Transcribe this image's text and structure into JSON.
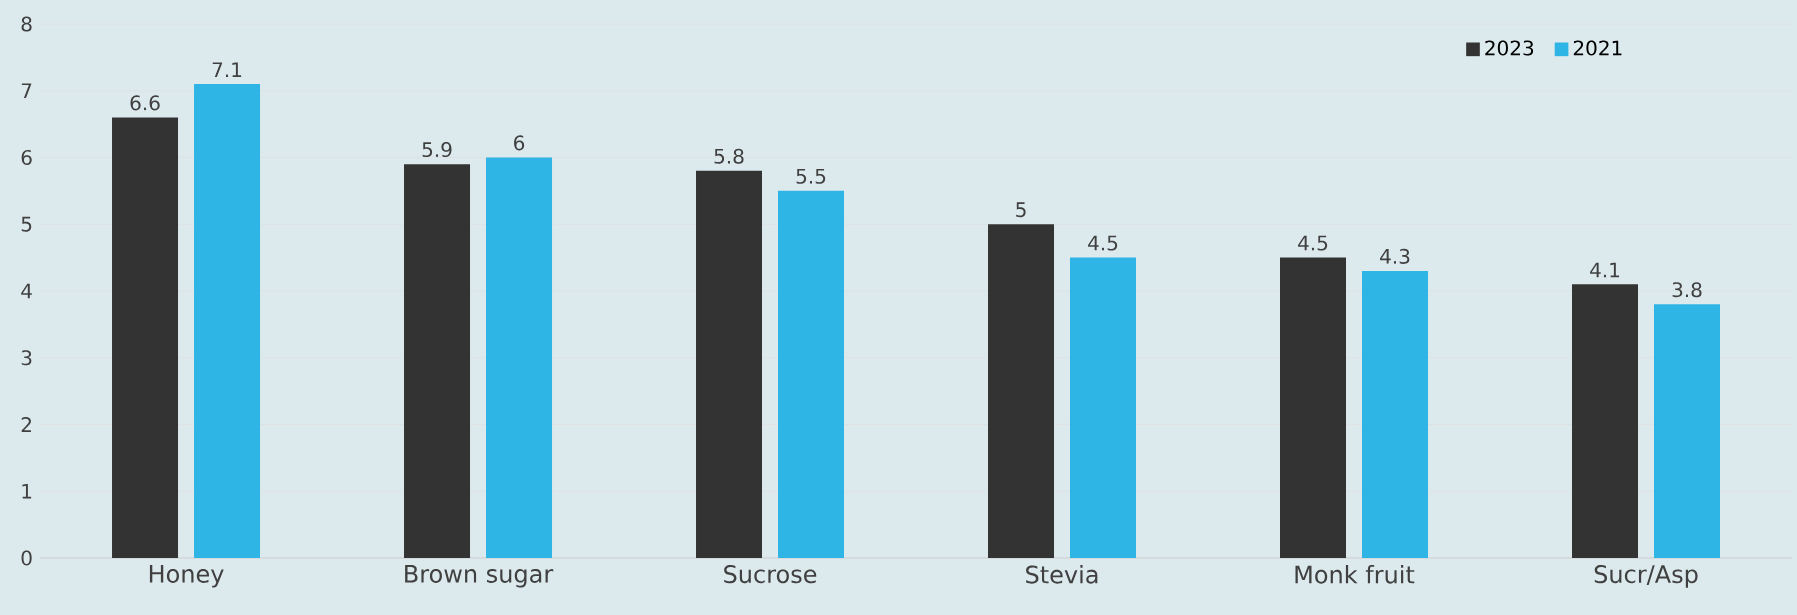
{
  "chart_data": {
    "type": "bar",
    "categories": [
      "Honey",
      "Brown sugar",
      "Sucrose",
      "Stevia",
      "Monk fruit",
      "Sucr/Asp"
    ],
    "series": [
      {
        "name": "2023",
        "color": "#333333",
        "values": [
          6.6,
          5.9,
          5.8,
          5,
          4.5,
          4.1
        ]
      },
      {
        "name": "2021",
        "color": "#2fb4e6",
        "values": [
          7.1,
          6,
          5.5,
          4.5,
          4.3,
          3.8
        ]
      }
    ],
    "ylim": [
      0,
      8
    ],
    "yticks": [
      0,
      1,
      2,
      3,
      4,
      5,
      6,
      7,
      8
    ],
    "grid": "y",
    "legend": "top right",
    "data_labels": true
  }
}
